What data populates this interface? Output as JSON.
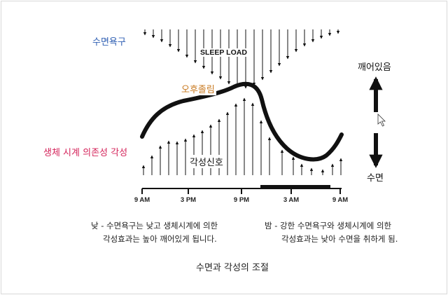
{
  "labels": {
    "sleep_drive": "수면욕구",
    "sleep_load": "SLEEP LOAD",
    "afternoon_dip": "오후졸림",
    "circadian_alerting": "생체 시계 의존성 각성",
    "alerting_signal": "각성신호",
    "awake": "깨어있음",
    "asleep": "수면"
  },
  "time_axis": [
    "9 AM",
    "3 PM",
    "9 PM",
    "3 AM",
    "9 AM"
  ],
  "captions": {
    "day_line1": "낮 - 수면욕구는 낮고 생체시계에 의한",
    "day_line2": "각성효과는 높아 깨어있게 됩니다.",
    "night_line1": "밤 - 강한 수면욕구와 생체시계에 의한",
    "night_line2": "각성효과는 낮아 수면을 취하게 됨."
  },
  "title": "수면과 각성의 조절",
  "colors": {
    "sleep_drive": "#2f5fb3",
    "afternoon_dip": "#c8781e",
    "circadian_alerting": "#d4235a",
    "ink": "#111111"
  }
}
